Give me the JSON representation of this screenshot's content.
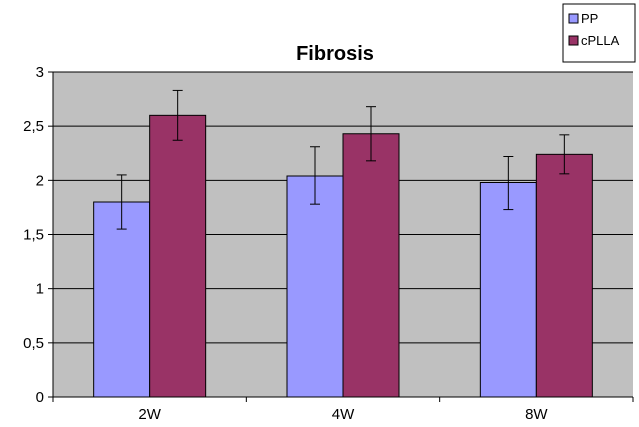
{
  "chart_data": {
    "type": "bar",
    "title": "Fibrosis",
    "xlabel": "",
    "ylabel": "",
    "categories": [
      "2W",
      "4W",
      "8W"
    ],
    "ylim": [
      0,
      3
    ],
    "yticks": [
      "0",
      "0,5",
      "1",
      "1,5",
      "2",
      "2,5",
      "3"
    ],
    "grid": true,
    "legend_position": "top-right",
    "series": [
      {
        "name": "PP",
        "color": "#9999ff",
        "values": [
          1.8,
          2.04,
          1.98
        ],
        "error_low": [
          1.55,
          1.78,
          1.73
        ],
        "error_high": [
          2.05,
          2.31,
          2.22
        ]
      },
      {
        "name": "cPLLA",
        "color": "#993366",
        "values": [
          2.6,
          2.43,
          2.24
        ],
        "error_low": [
          2.37,
          2.18,
          2.06
        ],
        "error_high": [
          2.83,
          2.68,
          2.42
        ]
      }
    ],
    "plot_background": "#c0c0c0"
  }
}
